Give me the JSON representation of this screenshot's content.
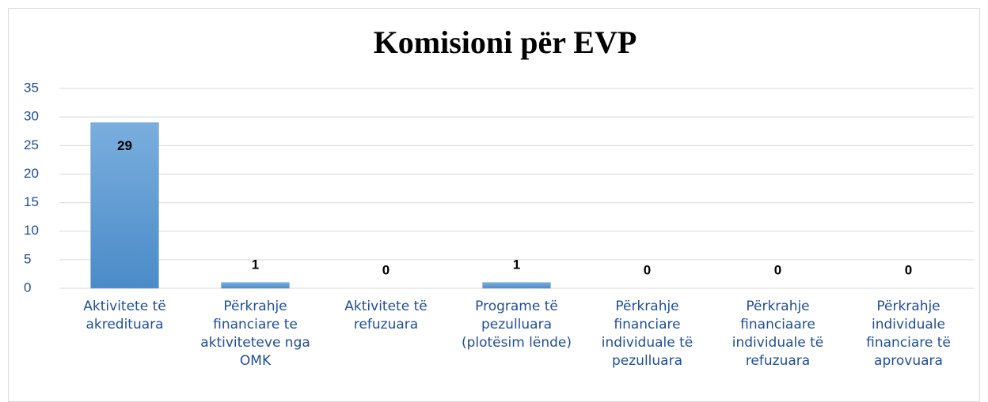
{
  "chart_data": {
    "type": "bar",
    "title": "Komisioni për EVP",
    "categories": [
      "Aktivitete të akredituara",
      "Përkrahje financiare te aktiviteteve nga OMK",
      "Aktivitete të refuzuara",
      "Programe të pezulluara (plotësim lënde)",
      "Përkrahje financiare individuale të pezulluara",
      "Përkrahje financiaare individuale të refuzuara",
      "Përkrahje individuale financiare të aprovuara"
    ],
    "values": [
      29,
      1,
      0,
      1,
      0,
      0,
      0
    ],
    "color": "#5b9bd5",
    "ylim": [
      0,
      35
    ],
    "yticks": [
      0,
      5,
      10,
      15,
      20,
      25,
      30,
      35
    ],
    "grid": true
  }
}
